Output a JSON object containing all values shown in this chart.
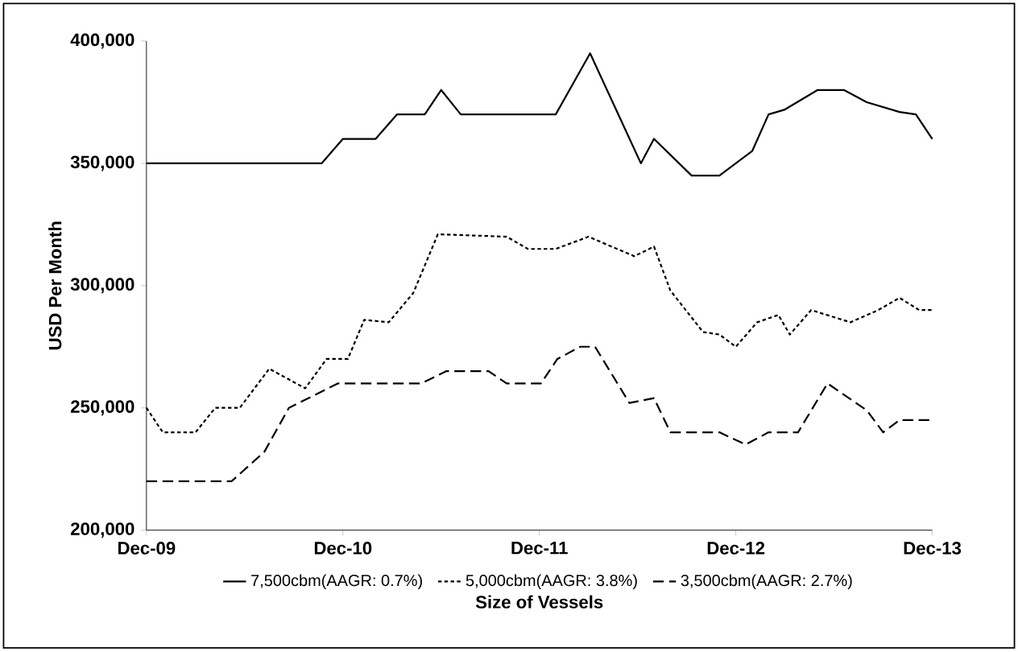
{
  "chart_data": {
    "type": "line",
    "xlabel": "Size of Vessels",
    "ylabel": "USD Per Month",
    "xlim": [
      "2009-12-01",
      "2013-12-01"
    ],
    "xticks": [
      {
        "value": "2009-12",
        "label": "Dec-09"
      },
      {
        "value": "2010-12",
        "label": "Dec-10"
      },
      {
        "value": "2011-12",
        "label": "Dec-11"
      },
      {
        "value": "2012-12",
        "label": "Dec-12"
      },
      {
        "value": "2013-12",
        "label": "Dec-13"
      }
    ],
    "ylim": [
      200000,
      400000
    ],
    "yticks": [
      {
        "value": 200000,
        "label": "200,000"
      },
      {
        "value": 250000,
        "label": "250,000"
      },
      {
        "value": 300000,
        "label": "300,000"
      },
      {
        "value": 350000,
        "label": "350,000"
      },
      {
        "value": 400000,
        "label": "400,000"
      }
    ],
    "legend": "bottom",
    "grid": false,
    "marker": "none",
    "series": [
      {
        "name": "7,500cbm(AAGR: 0.7%)",
        "color": "#000000",
        "line_style": "solid",
        "x": [
          "2009-12-01",
          "2010-10-22",
          "2010-12-01",
          "2011-02-01",
          "2011-03-10",
          "2011-05-01",
          "2011-06-01",
          "2011-07-07",
          "2012-01-01",
          "2012-03-04",
          "2012-06-07",
          "2012-07-01",
          "2012-09-10",
          "2012-11-01",
          "2013-01-01",
          "2013-02-01",
          "2013-03-01",
          "2013-05-01",
          "2013-06-19",
          "2013-08-01",
          "2013-10-01",
          "2013-11-01",
          "2013-12-01"
        ],
        "values": [
          350000,
          350000,
          360000,
          360000,
          370000,
          370000,
          380000,
          370000,
          370000,
          395000,
          350000,
          360000,
          345000,
          345000,
          355000,
          370000,
          372000,
          380000,
          380000,
          375000,
          371000,
          370000,
          360000
        ]
      },
      {
        "name": "5,000cbm(AAGR: 3.8%)",
        "color": "#000000",
        "line_style": "dotted",
        "x": [
          "2009-12-01",
          "2010-01-01",
          "2010-03-01",
          "2010-04-07",
          "2010-05-22",
          "2010-07-16",
          "2010-09-22",
          "2010-11-01",
          "2010-12-10",
          "2011-01-10",
          "2011-02-25",
          "2011-04-10",
          "2011-05-25",
          "2011-10-01",
          "2011-11-10",
          "2012-01-01",
          "2012-03-01",
          "2012-05-25",
          "2012-07-01",
          "2012-08-01",
          "2012-10-01",
          "2012-11-01",
          "2012-12-01",
          "2013-01-10",
          "2013-02-19",
          "2013-03-10",
          "2013-04-19",
          "2013-07-01",
          "2013-08-22",
          "2013-10-01",
          "2013-11-07",
          "2013-12-01"
        ],
        "values": [
          250000,
          240000,
          240000,
          250000,
          250000,
          266000,
          258000,
          270000,
          270000,
          286000,
          285000,
          297000,
          321000,
          320000,
          315000,
          315000,
          320000,
          312000,
          316000,
          298000,
          281000,
          280000,
          275000,
          285000,
          288000,
          280000,
          290000,
          285000,
          290000,
          295000,
          290000,
          290000
        ]
      },
      {
        "name": "3,500cbm(AAGR: 2.7%)",
        "color": "#000000",
        "line_style": "dashed",
        "x": [
          "2009-12-01",
          "2010-05-07",
          "2010-07-07",
          "2010-08-22",
          "2010-10-07",
          "2010-11-22",
          "2011-01-10",
          "2011-04-25",
          "2011-06-10",
          "2011-08-28",
          "2011-10-01",
          "2011-12-04",
          "2012-01-04",
          "2012-02-16",
          "2012-03-13",
          "2012-05-16",
          "2012-07-01",
          "2012-08-01",
          "2012-11-01",
          "2012-12-19",
          "2013-02-01",
          "2013-03-25",
          "2013-05-19",
          "2013-08-01",
          "2013-09-01",
          "2013-10-01",
          "2013-12-01"
        ],
        "values": [
          220000,
          220000,
          232000,
          250000,
          255000,
          260000,
          260000,
          260000,
          265000,
          265000,
          260000,
          260000,
          270000,
          275000,
          275000,
          252000,
          254000,
          240000,
          240000,
          235000,
          240000,
          240000,
          260000,
          249000,
          240000,
          245000,
          245000
        ]
      }
    ]
  }
}
